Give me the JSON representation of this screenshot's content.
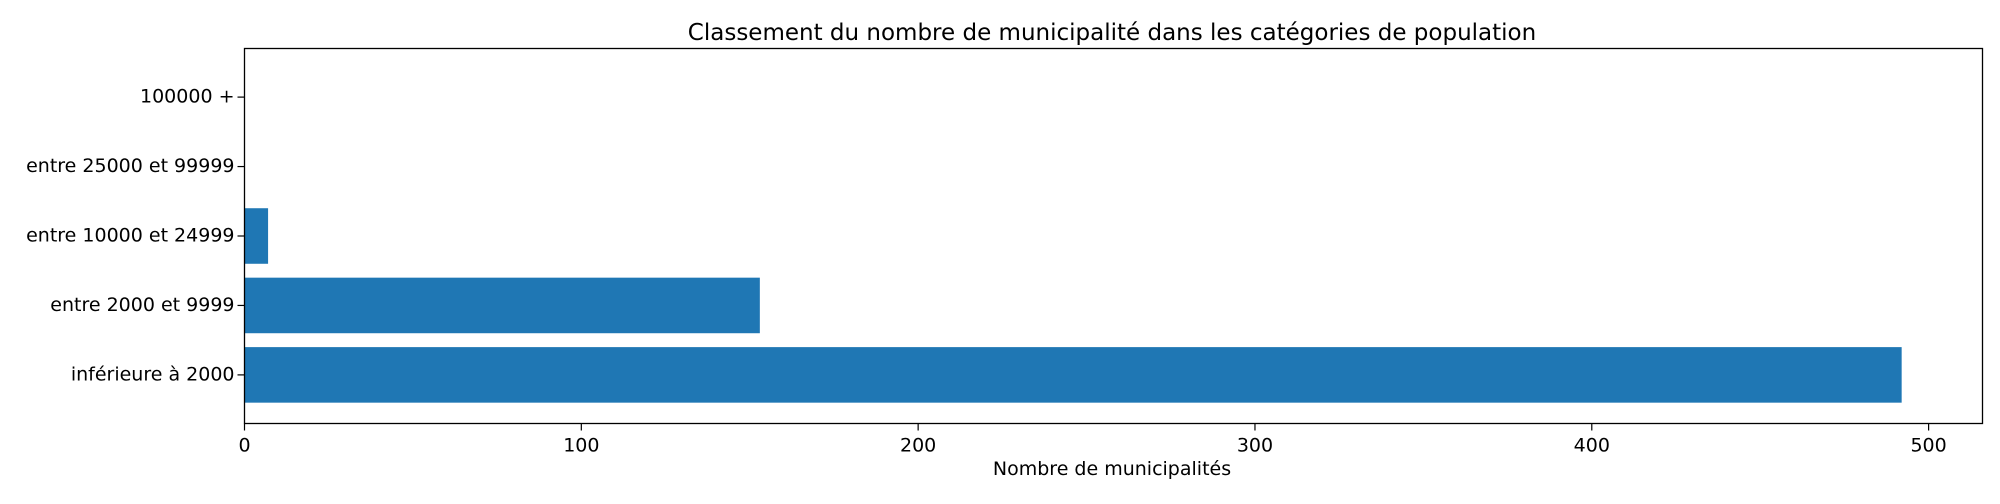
{
  "chart_data": {
    "type": "bar",
    "orientation": "horizontal",
    "title": "Classement du nombre de municipalité dans les catégories de population",
    "xlabel": "Nombre de municipalités",
    "ylabel": "",
    "categories": [
      "inférieure à 2000",
      "entre 2000 et 9999",
      "entre 10000 et 24999",
      "entre 25000 et 99999",
      "100000 +"
    ],
    "values": [
      492,
      153,
      7,
      0,
      0
    ],
    "xlim": [
      0,
      516
    ],
    "xticks": [
      0,
      100,
      200,
      300,
      400,
      500
    ],
    "grid": false,
    "bar_color": "#1f77b4"
  }
}
